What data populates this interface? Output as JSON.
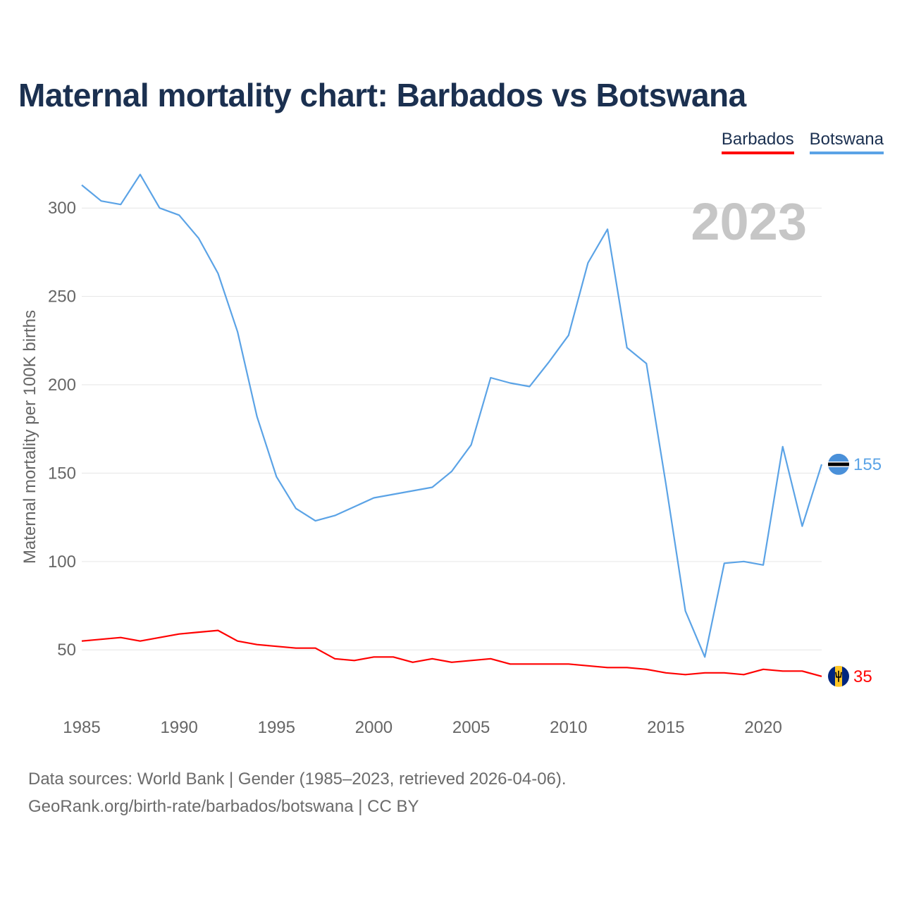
{
  "title": "Maternal mortality chart: Barbados vs Botswana",
  "legend": [
    {
      "label": "Barbados",
      "color": "#ff0000"
    },
    {
      "label": "Botswana",
      "color": "#5ba3e6"
    }
  ],
  "year_overlay": "2023",
  "footer": {
    "line1": "Data sources: World Bank | Gender (1985–2023, retrieved 2026-04-06).",
    "line2": "GeoRank.org/birth-rate/barbados/botswana | CC BY"
  },
  "chart_data": {
    "type": "line",
    "title": "Maternal mortality chart: Barbados vs Botswana",
    "xlabel": "",
    "ylabel": "Maternal mortality per 100K births",
    "x": [
      1985,
      1986,
      1987,
      1988,
      1989,
      1990,
      1991,
      1992,
      1993,
      1994,
      1995,
      1996,
      1997,
      1998,
      1999,
      2000,
      2001,
      2002,
      2003,
      2004,
      2005,
      2006,
      2007,
      2008,
      2009,
      2010,
      2011,
      2012,
      2013,
      2014,
      2015,
      2016,
      2017,
      2018,
      2019,
      2020,
      2021,
      2022,
      2023
    ],
    "xlim": [
      1985,
      2023
    ],
    "ylim": [
      15,
      330
    ],
    "xticks": [
      "1985",
      "1990",
      "1995",
      "2000",
      "2005",
      "2010",
      "2015",
      "2020"
    ],
    "yticks": [
      "50",
      "100",
      "150",
      "200",
      "250",
      "300"
    ],
    "grid": true,
    "legend_position": "top-right",
    "series": [
      {
        "name": "Barbados",
        "color": "#ff0000",
        "end_label": "35",
        "values": [
          55,
          56,
          57,
          55,
          57,
          59,
          60,
          61,
          55,
          53,
          52,
          51,
          51,
          45,
          44,
          46,
          46,
          43,
          45,
          43,
          44,
          45,
          42,
          42,
          42,
          42,
          41,
          40,
          40,
          39,
          37,
          36,
          37,
          37,
          36,
          39,
          38,
          38,
          35
        ]
      },
      {
        "name": "Botswana",
        "color": "#5ba3e6",
        "end_label": "155",
        "values": [
          313,
          304,
          302,
          319,
          300,
          296,
          283,
          263,
          230,
          182,
          148,
          130,
          123,
          126,
          131,
          136,
          138,
          140,
          142,
          151,
          166,
          204,
          201,
          199,
          213,
          228,
          269,
          288,
          221,
          212,
          144,
          72,
          46,
          99,
          100,
          98,
          165,
          120,
          155
        ]
      }
    ]
  }
}
